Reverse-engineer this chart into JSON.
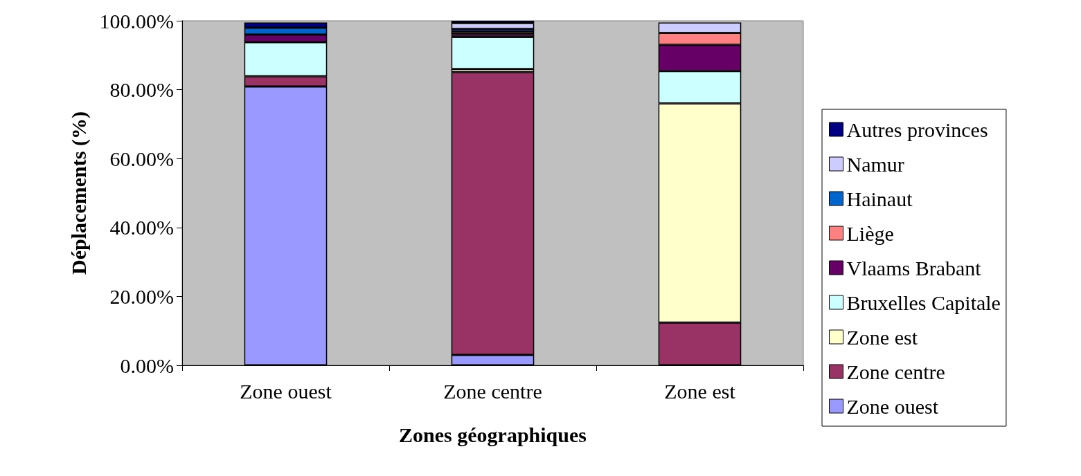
{
  "chart_data": {
    "type": "bar",
    "stacked": true,
    "xlabel": "Zones géographiques",
    "ylabel": "Déplacements (%)",
    "categories": [
      "Zone ouest",
      "Zone centre",
      "Zone est"
    ],
    "series": [
      {
        "name": "Zone ouest",
        "color": "#9999ff",
        "values": [
          80.9,
          3.0,
          null
        ]
      },
      {
        "name": "Zone centre",
        "color": "#993366",
        "values": [
          3.0,
          82.1,
          12.4
        ]
      },
      {
        "name": "Zone est",
        "color": "#ffffcc",
        "values": [
          null,
          0.9,
          63.6
        ]
      },
      {
        "name": "Bruxelles Capitale",
        "color": "#ccffff",
        "values": [
          9.9,
          9.3,
          9.4
        ]
      },
      {
        "name": "Vlaams Brabant",
        "color": "#660066",
        "values": [
          2.2,
          0.8,
          7.6
        ]
      },
      {
        "name": "Liège",
        "color": "#ff8080",
        "values": [
          null,
          0.7,
          3.5
        ]
      },
      {
        "name": "Hainaut",
        "color": "#0066cc",
        "values": [
          2.0,
          0.8,
          null
        ]
      },
      {
        "name": "Namur",
        "color": "#ccccff",
        "values": [
          null,
          1.7,
          3.0
        ]
      },
      {
        "name": "Autres provinces",
        "color": "#000080",
        "values": [
          1.5,
          0.7,
          null
        ]
      }
    ],
    "ylim": [
      0,
      100
    ],
    "yticks": [
      {
        "value": 0,
        "label": "0.00%"
      },
      {
        "value": 20,
        "label": "20.00%"
      },
      {
        "value": 40,
        "label": "40.00%"
      },
      {
        "value": 60,
        "label": "60.00%"
      },
      {
        "value": 80,
        "label": "80.00%"
      },
      {
        "value": 100,
        "label": "100.00%"
      }
    ],
    "grid": false,
    "legend": "right"
  }
}
